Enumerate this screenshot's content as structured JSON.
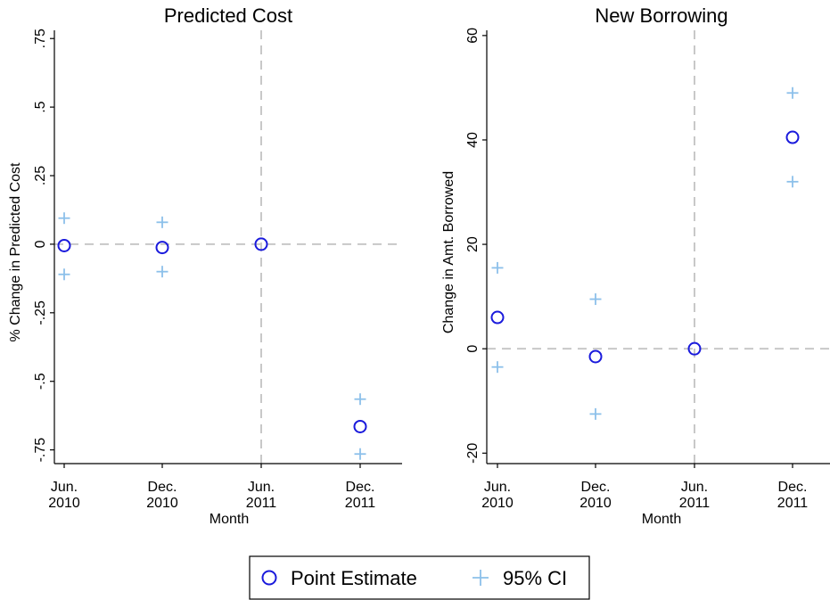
{
  "chart_data": [
    {
      "type": "scatter",
      "title": "Predicted Cost",
      "xlabel": "Month",
      "ylabel": "% Change in Predicted Cost",
      "categories": [
        [
          "Jun.",
          "2010"
        ],
        [
          "Dec.",
          "2010"
        ],
        [
          "Jun.",
          "2011"
        ],
        [
          "Dec.",
          "2011"
        ]
      ],
      "yticks": [
        ".75",
        ".5",
        ".25",
        "0",
        "-.25",
        "-.5",
        "-.75"
      ],
      "ytick_values": [
        0.75,
        0.5,
        0.25,
        0,
        -0.25,
        -0.5,
        -0.75
      ],
      "ylim": [
        -0.8,
        0.78
      ],
      "reference_lines": {
        "y": 0,
        "x_category": "Jun. 2011"
      },
      "series": [
        {
          "name": "Point Estimate",
          "values": [
            -0.005,
            -0.012,
            0.0,
            -0.665
          ]
        },
        {
          "name": "95% CI",
          "lower": [
            -0.11,
            -0.1,
            null,
            -0.765
          ],
          "upper": [
            0.095,
            0.08,
            null,
            -0.565
          ]
        }
      ]
    },
    {
      "type": "scatter",
      "title": "New Borrowing",
      "xlabel": "Month",
      "ylabel": "Change in Amt. Borrowed",
      "categories": [
        [
          "Jun.",
          "2010"
        ],
        [
          "Dec.",
          "2010"
        ],
        [
          "Jun.",
          "2011"
        ],
        [
          "Dec.",
          "2011"
        ]
      ],
      "yticks": [
        "60",
        "40",
        "20",
        "0",
        "-20"
      ],
      "ytick_values": [
        60,
        40,
        20,
        0,
        -20
      ],
      "ylim": [
        -22,
        61
      ],
      "reference_lines": {
        "y": 0,
        "x_category": "Jun. 2011"
      },
      "series": [
        {
          "name": "Point Estimate",
          "values": [
            6,
            -1.5,
            0,
            40.5
          ]
        },
        {
          "name": "95% CI",
          "lower": [
            -3.5,
            -12.5,
            null,
            32
          ],
          "upper": [
            15.5,
            9.5,
            null,
            49
          ]
        }
      ]
    }
  ],
  "legend": {
    "position": "bottom",
    "items": [
      {
        "label": "Point Estimate",
        "marker": "hollow-circle",
        "color": "#1a1adc"
      },
      {
        "label": "95% CI",
        "marker": "plus",
        "color": "#8cc0ea"
      }
    ]
  },
  "colors": {
    "point_estimate": "#1a1adc",
    "ci": "#8cc0ea",
    "reference_line": "#c8c8c8",
    "axis": "#000000"
  }
}
